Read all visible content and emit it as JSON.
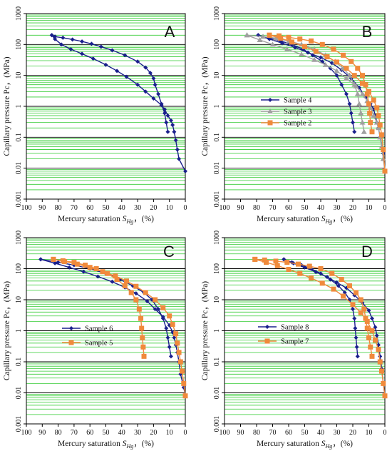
{
  "figure": {
    "ylabel": "Capillary pressure Pc，(MPa)",
    "xlabel_prefix": "Mercury saturation ",
    "xlabel_symbol": "S",
    "xlabel_subscript": "Hg",
    "xlabel_suffix": "，(%)"
  },
  "colors": {
    "grid_green": "#33cc33",
    "navy": "#1a1f8c",
    "orange": "#f08a3c",
    "gray": "#a0a0a0"
  },
  "chart_data": [
    {
      "type": "line",
      "panel": "A",
      "xlim": [
        100,
        0
      ],
      "ylim": [
        0.001,
        1000
      ],
      "yscale": "log",
      "xticks": [
        "100",
        "90",
        "80",
        "70",
        "60",
        "50",
        "40",
        "30",
        "20",
        "10",
        "0"
      ],
      "yticks": [
        "0.001",
        "0.01",
        "0.1",
        "1",
        "10",
        "100",
        "1000"
      ],
      "legend": [],
      "series": [
        {
          "marker": "diamond",
          "color": "#1a1f8c",
          "x": [
            11,
            12,
            13,
            15,
            17,
            19,
            20,
            22,
            25,
            30,
            38,
            46,
            53,
            59,
            65,
            71,
            77,
            82,
            84
          ],
          "y": [
            0.15,
            0.3,
            0.6,
            1.2,
            2.5,
            5,
            8,
            12,
            18,
            28,
            45,
            65,
            85,
            105,
            125,
            145,
            165,
            180,
            200
          ]
        },
        {
          "marker": "diamond",
          "color": "#1a1f8c",
          "x": [
            84,
            82,
            78,
            72,
            65,
            58,
            50,
            43,
            37,
            30,
            25,
            20,
            15,
            13,
            11,
            9,
            8,
            7,
            6,
            5,
            4,
            0
          ],
          "y": [
            200,
            150,
            100,
            70,
            50,
            35,
            22,
            14,
            9,
            5,
            3,
            1.8,
            1.1,
            0.8,
            0.5,
            0.35,
            0.25,
            0.15,
            0.08,
            0.04,
            0.02,
            0.008
          ]
        }
      ]
    },
    {
      "type": "line",
      "panel": "B",
      "xlim": [
        100,
        0
      ],
      "ylim": [
        0.001,
        1000
      ],
      "yscale": "log",
      "xticks": [
        "100",
        "90",
        "80",
        "70",
        "60",
        "50",
        "40",
        "30",
        "20",
        "10",
        "0"
      ],
      "yticks": [
        "0.001",
        "0.01",
        "0.1",
        "1",
        "10",
        "100",
        "1000"
      ],
      "legend": [
        "Sample 4",
        "Sample 3",
        "Sample 2"
      ],
      "series": [
        {
          "name": "Sample 4",
          "marker": "diamond",
          "color": "#1a1f8c",
          "x": [
            19,
            20,
            21,
            22,
            24,
            27,
            30,
            34,
            39,
            45,
            51,
            58,
            65,
            72,
            79
          ],
          "y": [
            0.15,
            0.3,
            0.6,
            1.2,
            2.5,
            5,
            10,
            17,
            28,
            45,
            70,
            100,
            130,
            160,
            200
          ]
        },
        {
          "name": "Sample 4",
          "marker": "diamond",
          "color": "#1a1f8c",
          "x": [
            79,
            72,
            64,
            56,
            48,
            40,
            33,
            27,
            21,
            16,
            12,
            9,
            7,
            6,
            5,
            4,
            3,
            1,
            0
          ],
          "y": [
            200,
            150,
            110,
            80,
            55,
            38,
            25,
            15,
            8,
            4,
            2,
            1.2,
            0.8,
            0.5,
            0.3,
            0.2,
            0.1,
            0.03,
            0.008
          ]
        },
        {
          "name": "Sample 3",
          "marker": "triangle",
          "color": "#a0a0a0",
          "x": [
            13,
            14,
            15,
            16,
            17,
            19,
            22,
            26,
            31,
            37,
            44,
            52,
            60,
            68,
            76,
            86
          ],
          "y": [
            0.15,
            0.3,
            0.6,
            1.2,
            2.5,
            5,
            10,
            17,
            28,
            45,
            70,
            100,
            130,
            160,
            180,
            200
          ]
        },
        {
          "name": "Sample 3",
          "marker": "triangle",
          "color": "#a0a0a0",
          "x": [
            86,
            78,
            70,
            61,
            52,
            44,
            37,
            30,
            24,
            18,
            14,
            11,
            9,
            7,
            5,
            4,
            3,
            2,
            1,
            0
          ],
          "y": [
            200,
            140,
            100,
            70,
            48,
            32,
            22,
            14,
            8,
            4.5,
            2.5,
            1.5,
            0.9,
            0.5,
            0.3,
            0.2,
            0.1,
            0.05,
            0.02,
            0.008
          ]
        },
        {
          "name": "Sample 2",
          "marker": "square",
          "color": "#f08a3c",
          "x": [
            8,
            9,
            9.5,
            10,
            11,
            12,
            14,
            17,
            21,
            26,
            32,
            39,
            46,
            53,
            60,
            66,
            72
          ],
          "y": [
            0.15,
            0.3,
            0.6,
            1.2,
            2.5,
            5,
            10,
            17,
            28,
            45,
            70,
            100,
            130,
            150,
            170,
            190,
            200
          ]
        },
        {
          "name": "Sample 2",
          "marker": "square",
          "color": "#f08a3c",
          "x": [
            72,
            65,
            58,
            50,
            43,
            36,
            30,
            24,
            19,
            14,
            10,
            7,
            5,
            4,
            3,
            2,
            1,
            0
          ],
          "y": [
            200,
            160,
            120,
            85,
            60,
            40,
            27,
            17,
            10,
            5.5,
            3,
            1.6,
            0.9,
            0.5,
            0.25,
            0.12,
            0.04,
            0.008
          ]
        }
      ]
    },
    {
      "type": "line",
      "panel": "C",
      "xlim": [
        100,
        0
      ],
      "ylim": [
        0.001,
        1000
      ],
      "yscale": "log",
      "xticks": [
        "100",
        "90",
        "80",
        "70",
        "60",
        "50",
        "40",
        "30",
        "20",
        "10",
        "0"
      ],
      "yticks": [
        "0.001",
        "0.01",
        "0.1",
        "1",
        "10",
        "100",
        "1000"
      ],
      "legend": [
        "Sample 6",
        "Sample 5"
      ],
      "series": [
        {
          "name": "Sample 6",
          "marker": "diamond",
          "color": "#1a1f8c",
          "x": [
            9,
            10,
            11,
            12,
            14,
            17,
            21,
            26,
            33,
            41,
            50,
            60,
            70,
            80,
            91
          ],
          "y": [
            0.15,
            0.3,
            0.6,
            1.2,
            2.5,
            5,
            10,
            17,
            28,
            45,
            70,
            100,
            130,
            160,
            200
          ]
        },
        {
          "name": "Sample 6",
          "marker": "diamond",
          "color": "#1a1f8c",
          "x": [
            91,
            82,
            73,
            64,
            55,
            46,
            38,
            31,
            24,
            19,
            14,
            10,
            8,
            7,
            6,
            5,
            4,
            3,
            1,
            0
          ],
          "y": [
            200,
            150,
            110,
            80,
            56,
            38,
            25,
            16,
            9,
            5,
            2.8,
            1.5,
            0.9,
            0.6,
            0.35,
            0.2,
            0.1,
            0.04,
            0.015,
            0.008
          ]
        },
        {
          "name": "Sample 5",
          "marker": "square",
          "color": "#f08a3c",
          "x": [
            26,
            26.5,
            27,
            27.5,
            28,
            29,
            31,
            34,
            38,
            43,
            49,
            56,
            63,
            70,
            77,
            83
          ],
          "y": [
            0.15,
            0.3,
            0.6,
            1.2,
            2.5,
            5,
            10,
            17,
            28,
            45,
            70,
            100,
            130,
            160,
            180,
            200
          ]
        },
        {
          "name": "Sample 5",
          "marker": "square",
          "color": "#f08a3c",
          "x": [
            83,
            76,
            68,
            60,
            52,
            44,
            37,
            31,
            25,
            19,
            14,
            10,
            8,
            6,
            5,
            4,
            3,
            2,
            1,
            0
          ],
          "y": [
            200,
            170,
            140,
            110,
            80,
            58,
            40,
            27,
            17,
            10,
            5.5,
            3,
            1.6,
            0.8,
            0.4,
            0.2,
            0.1,
            0.05,
            0.02,
            0.008
          ]
        }
      ]
    },
    {
      "type": "line",
      "panel": "D",
      "xlim": [
        100,
        0
      ],
      "ylim": [
        0.001,
        1000
      ],
      "yscale": "log",
      "xticks": [
        "100",
        "90",
        "80",
        "70",
        "60",
        "50",
        "40",
        "30",
        "20",
        "10",
        "0"
      ],
      "yticks": [
        "0.001",
        "0.01",
        "0.1",
        "1",
        "10",
        "100",
        "1000"
      ],
      "legend": [
        "Sample 8",
        "Sample 7"
      ],
      "series": [
        {
          "name": "Sample 8",
          "marker": "diamond",
          "color": "#1a1f8c",
          "x": [
            17,
            17.5,
            18,
            18.5,
            19,
            20,
            22,
            25,
            29,
            34,
            40,
            46,
            52,
            58,
            63
          ],
          "y": [
            0.15,
            0.3,
            0.6,
            1.2,
            2.5,
            5,
            10,
            17,
            28,
            45,
            70,
            100,
            130,
            160,
            200
          ]
        },
        {
          "name": "Sample 8",
          "marker": "diamond",
          "color": "#1a1f8c",
          "x": [
            63,
            57,
            50,
            43,
            36,
            30,
            24,
            19,
            14,
            10,
            8,
            6,
            5,
            4,
            3,
            2,
            1,
            0
          ],
          "y": [
            200,
            150,
            110,
            78,
            54,
            36,
            24,
            14,
            8,
            4.5,
            2.5,
            1.3,
            0.7,
            0.35,
            0.15,
            0.06,
            0.02,
            0.008
          ]
        },
        {
          "name": "Sample 7",
          "marker": "square",
          "color": "#f08a3c",
          "x": [
            8,
            9,
            10,
            11,
            12,
            13,
            15,
            18,
            22,
            27,
            33,
            40,
            47,
            54,
            61,
            68,
            75,
            81
          ],
          "y": [
            0.15,
            0.3,
            0.6,
            1.2,
            2.5,
            5,
            10,
            17,
            28,
            45,
            70,
            100,
            120,
            140,
            160,
            175,
            190,
            200
          ]
        },
        {
          "name": "Sample 7",
          "marker": "square",
          "color": "#f08a3c",
          "x": [
            81,
            74,
            67,
            60,
            53,
            46,
            39,
            32,
            26,
            20,
            15,
            11,
            8,
            6,
            4,
            3,
            2,
            1,
            0
          ],
          "y": [
            200,
            160,
            125,
            95,
            70,
            50,
            34,
            22,
            13,
            7,
            3.8,
            2,
            1,
            0.5,
            0.25,
            0.1,
            0.05,
            0.02,
            0.008
          ]
        }
      ]
    }
  ]
}
